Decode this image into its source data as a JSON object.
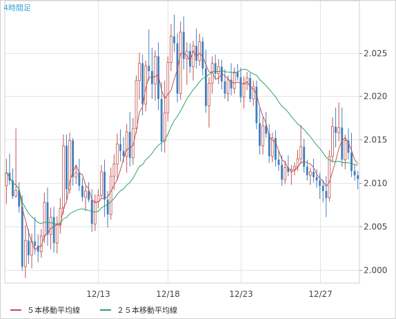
{
  "timeframe_label": "4時間足",
  "legend": [
    {
      "label": "５本移動平均線",
      "color": "#c0504d"
    },
    {
      "label": "２５本移動平均線",
      "color": "#2ca06a"
    }
  ],
  "colors": {
    "up_candle": "#c0504d",
    "down_candle": "#3f7fbf",
    "ma5": "#c0504d",
    "ma25": "#2ca06a",
    "grid": "#e3e3e3",
    "axis_text": "#444444"
  },
  "chart_data": {
    "type": "candlestick",
    "title": "",
    "xlabel": "",
    "ylabel": "",
    "y_axis_side": "right",
    "ylim": [
      1.9985,
      2.031
    ],
    "yticks": [
      2.0,
      2.005,
      2.01,
      2.015,
      2.02,
      2.025
    ],
    "ytick_labels": [
      "2.000",
      "2.005",
      "2.010",
      "2.015",
      "2.020",
      "2.025"
    ],
    "xtick_labels": [
      {
        "label": "12/13",
        "index": 29
      },
      {
        "label": "12/18",
        "index": 51
      },
      {
        "label": "12/23",
        "index": 74
      },
      {
        "label": "12/27",
        "index": 99
      }
    ],
    "grid": true,
    "candles": [
      [
        2.0097,
        2.0128,
        2.0076,
        2.0112
      ],
      [
        2.0112,
        2.0134,
        2.0098,
        2.0103
      ],
      [
        2.0103,
        2.0117,
        2.0082,
        2.0085
      ],
      [
        2.0085,
        2.0163,
        2.0083,
        2.0092
      ],
      [
        2.0092,
        2.0101,
        2.0066,
        2.0073
      ],
      [
        2.0073,
        2.0086,
        1.9999,
        2.0004
      ],
      [
        2.0004,
        2.0052,
        1.9991,
        2.0034
      ],
      [
        2.0034,
        2.0047,
        2.0007,
        2.0017
      ],
      [
        2.0017,
        2.0042,
        2.0002,
        2.0033
      ],
      [
        2.0033,
        2.0061,
        2.0018,
        2.0028
      ],
      [
        2.0028,
        2.0041,
        2.0009,
        2.0021
      ],
      [
        2.0021,
        2.0047,
        2.0014,
        2.0039
      ],
      [
        2.0039,
        2.0089,
        2.0031,
        2.0078
      ],
      [
        2.0078,
        2.0095,
        2.0028,
        2.0041
      ],
      [
        2.0041,
        2.0072,
        2.0024,
        2.0061
      ],
      [
        2.0061,
        2.0073,
        2.002,
        2.0031
      ],
      [
        2.0031,
        2.0062,
        2.0019,
        2.0052
      ],
      [
        2.0052,
        2.0083,
        2.0042,
        2.0071
      ],
      [
        2.0071,
        2.0156,
        2.0064,
        2.0143
      ],
      [
        2.0143,
        2.0156,
        2.0081,
        2.0093
      ],
      [
        2.0093,
        2.0158,
        2.0088,
        2.0149
      ],
      [
        2.0149,
        2.0152,
        2.0097,
        2.0107
      ],
      [
        2.0107,
        2.0121,
        2.0099,
        2.0112
      ],
      [
        2.0112,
        2.0128,
        2.0091,
        2.0097
      ],
      [
        2.0097,
        2.0106,
        2.0079,
        2.0084
      ],
      [
        2.0084,
        2.0097,
        2.0068,
        2.0091
      ],
      [
        2.0091,
        2.0101,
        2.0078,
        2.0081
      ],
      [
        2.0081,
        2.0093,
        2.0044,
        2.0053
      ],
      [
        2.0053,
        2.0087,
        2.0045,
        2.0079
      ],
      [
        2.0079,
        2.0093,
        2.0071,
        2.0086
      ],
      [
        2.0086,
        2.0121,
        2.0082,
        2.0113
      ],
      [
        2.0113,
        2.0127,
        2.0061,
        2.0081
      ],
      [
        2.0081,
        2.0091,
        2.0049,
        2.0064
      ],
      [
        2.0064,
        2.0118,
        2.0058,
        2.0108
      ],
      [
        2.0108,
        2.0133,
        2.0092,
        2.0122
      ],
      [
        2.0122,
        2.0157,
        2.0103,
        2.0145
      ],
      [
        2.0145,
        2.0162,
        2.0125,
        2.0137
      ],
      [
        2.0137,
        2.0153,
        2.0124,
        2.0131
      ],
      [
        2.0131,
        2.0168,
        2.0112,
        2.0159
      ],
      [
        2.0159,
        2.0182,
        2.0119,
        2.0129
      ],
      [
        2.0129,
        2.0175,
        2.0121,
        2.0163
      ],
      [
        2.0163,
        2.0224,
        2.0157,
        2.0218
      ],
      [
        2.0218,
        2.025,
        2.0196,
        2.0238
      ],
      [
        2.0238,
        2.0248,
        2.0178,
        2.0191
      ],
      [
        2.0191,
        2.0241,
        2.0183,
        2.0235
      ],
      [
        2.0235,
        2.0277,
        2.0218,
        2.0229
      ],
      [
        2.0229,
        2.0256,
        2.0197,
        2.0214
      ],
      [
        2.0214,
        2.0253,
        2.0195,
        2.0246
      ],
      [
        2.0246,
        2.0262,
        2.0184,
        2.0197
      ],
      [
        2.0197,
        2.0216,
        2.0136,
        2.0148
      ],
      [
        2.0148,
        2.0218,
        2.0135,
        2.0181
      ],
      [
        2.0181,
        2.0246,
        2.0171,
        2.0239
      ],
      [
        2.0239,
        2.0283,
        2.0229,
        2.0269
      ],
      [
        2.0269,
        2.0294,
        2.0251,
        2.0261
      ],
      [
        2.0261,
        2.0272,
        2.0193,
        2.0203
      ],
      [
        2.0203,
        2.0286,
        2.0196,
        2.0274
      ],
      [
        2.0274,
        2.0292,
        2.0231,
        2.0243
      ],
      [
        2.0243,
        2.0262,
        2.0213,
        2.0252
      ],
      [
        2.0252,
        2.0261,
        2.0227,
        2.0234
      ],
      [
        2.0234,
        2.0264,
        2.0218,
        2.0258
      ],
      [
        2.0258,
        2.0278,
        2.0232,
        2.0241
      ],
      [
        2.0241,
        2.0272,
        2.0235,
        2.0263
      ],
      [
        2.0263,
        2.0268,
        2.0224,
        2.0232
      ],
      [
        2.0232,
        2.0254,
        2.0181,
        2.0189
      ],
      [
        2.0189,
        2.0222,
        2.0164,
        2.0215
      ],
      [
        2.0215,
        2.0246,
        2.0203,
        2.0238
      ],
      [
        2.0238,
        2.0248,
        2.0219,
        2.0226
      ],
      [
        2.0226,
        2.0243,
        2.0214,
        2.0234
      ],
      [
        2.0234,
        2.0242,
        2.0208,
        2.0217
      ],
      [
        2.0217,
        2.0231,
        2.0197,
        2.0203
      ],
      [
        2.0203,
        2.0224,
        2.0194,
        2.0219
      ],
      [
        2.0219,
        2.0238,
        2.0201,
        2.0209
      ],
      [
        2.0209,
        2.0233,
        2.0203,
        2.0228
      ],
      [
        2.0228,
        2.0237,
        2.0218,
        2.0222
      ],
      [
        2.0222,
        2.0233,
        2.0193,
        2.0199
      ],
      [
        2.0199,
        2.0223,
        2.0186,
        2.0214
      ],
      [
        2.0214,
        2.0228,
        2.0207,
        2.0221
      ],
      [
        2.0221,
        2.0227,
        2.0193,
        2.0197
      ],
      [
        2.0197,
        2.0218,
        2.0189,
        2.0211
      ],
      [
        2.0211,
        2.0218,
        2.0162,
        2.0169
      ],
      [
        2.0169,
        2.0186,
        2.0133,
        2.0143
      ],
      [
        2.0143,
        2.0176,
        2.0133,
        2.0166
      ],
      [
        2.0166,
        2.0182,
        2.0152,
        2.0157
      ],
      [
        2.0157,
        2.0168,
        2.0123,
        2.0131
      ],
      [
        2.0131,
        2.0158,
        2.0124,
        2.0152
      ],
      [
        2.0152,
        2.0161,
        2.0119,
        2.0127
      ],
      [
        2.0127,
        2.0138,
        2.0114,
        2.0121
      ],
      [
        2.0121,
        2.0132,
        2.0097,
        2.0104
      ],
      [
        2.0104,
        2.0126,
        2.0099,
        2.0118
      ],
      [
        2.0118,
        2.0132,
        2.0108,
        2.0113
      ],
      [
        2.0113,
        2.0121,
        2.0098,
        2.0116
      ],
      [
        2.0116,
        2.0124,
        2.0109,
        2.0119
      ],
      [
        2.0119,
        2.0138,
        2.0114,
        2.0128
      ],
      [
        2.0128,
        2.0167,
        2.0122,
        2.0142
      ],
      [
        2.0142,
        2.0151,
        2.0112,
        2.0119
      ],
      [
        2.0119,
        2.0127,
        2.0103,
        2.0109
      ],
      [
        2.0109,
        2.0118,
        2.0098,
        2.0113
      ],
      [
        2.0113,
        2.0128,
        2.0101,
        2.0107
      ],
      [
        2.0107,
        2.0116,
        2.0095,
        2.0103
      ],
      [
        2.0103,
        2.0112,
        2.0082,
        2.0097
      ],
      [
        2.0097,
        2.0104,
        2.0078,
        2.0091
      ],
      [
        2.0091,
        2.0108,
        2.0061,
        2.0083
      ],
      [
        2.0083,
        2.0138,
        2.0079,
        2.0131
      ],
      [
        2.0131,
        2.0176,
        2.0124,
        2.0165
      ],
      [
        2.0165,
        2.0187,
        2.0141,
        2.0158
      ],
      [
        2.0158,
        2.0193,
        2.0148,
        2.0164
      ],
      [
        2.0164,
        2.0187,
        2.0119,
        2.0127
      ],
      [
        2.0127,
        2.0156,
        2.0116,
        2.0149
      ],
      [
        2.0149,
        2.0163,
        2.0127,
        2.0135
      ],
      [
        2.0135,
        2.0158,
        2.0107,
        2.0114
      ],
      [
        2.0114,
        2.0122,
        2.0103,
        2.0109
      ],
      [
        2.0109,
        2.0114,
        2.0093,
        2.0105
      ]
    ],
    "series": [
      {
        "name": "５本移動平均線",
        "type": "line",
        "period": 5
      },
      {
        "name": "２５本移動平均線",
        "type": "line",
        "period": 25
      }
    ]
  }
}
